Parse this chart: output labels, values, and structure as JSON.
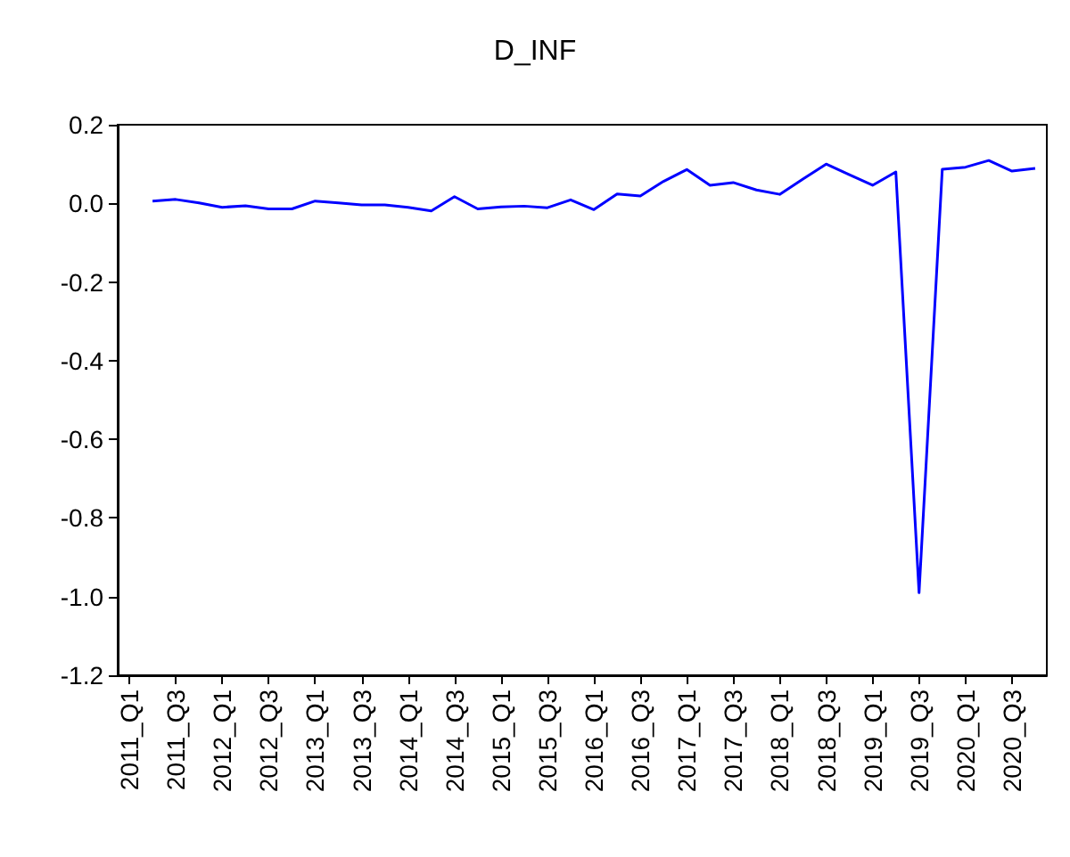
{
  "chart_data": {
    "type": "line",
    "title": "D_INF",
    "categories": [
      "2011_Q1",
      null,
      "2011_Q3",
      null,
      "2012_Q1",
      null,
      "2012_Q3",
      null,
      "2013_Q1",
      null,
      "2013_Q3",
      null,
      "2014_Q1",
      null,
      "2014_Q3",
      null,
      "2015_Q1",
      null,
      "2015_Q3",
      null,
      "2016_Q1",
      null,
      "2016_Q3",
      null,
      "2017_Q1",
      null,
      "2017_Q3",
      null,
      "2018_Q1",
      null,
      "2018_Q3",
      null,
      "2019_Q1",
      null,
      "2019_Q3",
      null,
      "2020_Q1",
      null,
      "2020_Q3",
      null
    ],
    "series": [
      {
        "color": "#0000ff",
        "values": [
          null,
          0.006,
          0.01,
          0.001,
          -0.01,
          -0.006,
          -0.014,
          -0.014,
          0.006,
          0.001,
          -0.004,
          -0.004,
          -0.01,
          -0.019,
          0.017,
          -0.014,
          -0.009,
          -0.007,
          -0.011,
          0.009,
          -0.016,
          0.024,
          0.019,
          0.056,
          0.086,
          0.046,
          0.053,
          0.034,
          0.023,
          0.062,
          0.1,
          0.073,
          0.046,
          0.08,
          -0.99,
          0.087,
          0.092,
          0.109,
          0.082,
          0.089
        ]
      }
    ],
    "ylim": [
      -1.2,
      0.2
    ],
    "yticks": [
      {
        "value": -1.2,
        "label": "-1.2"
      },
      {
        "value": -1.0,
        "label": "-1.0"
      },
      {
        "value": -0.8,
        "label": "-0.8"
      },
      {
        "value": -0.6,
        "label": "-0.6"
      },
      {
        "value": -0.4,
        "label": "-0.4"
      },
      {
        "value": -0.2,
        "label": "-0.2"
      },
      {
        "value": 0,
        "label": "0.0"
      },
      0.2
    ],
    "grid": false,
    "marker": "none",
    "line_style": "solid"
  }
}
